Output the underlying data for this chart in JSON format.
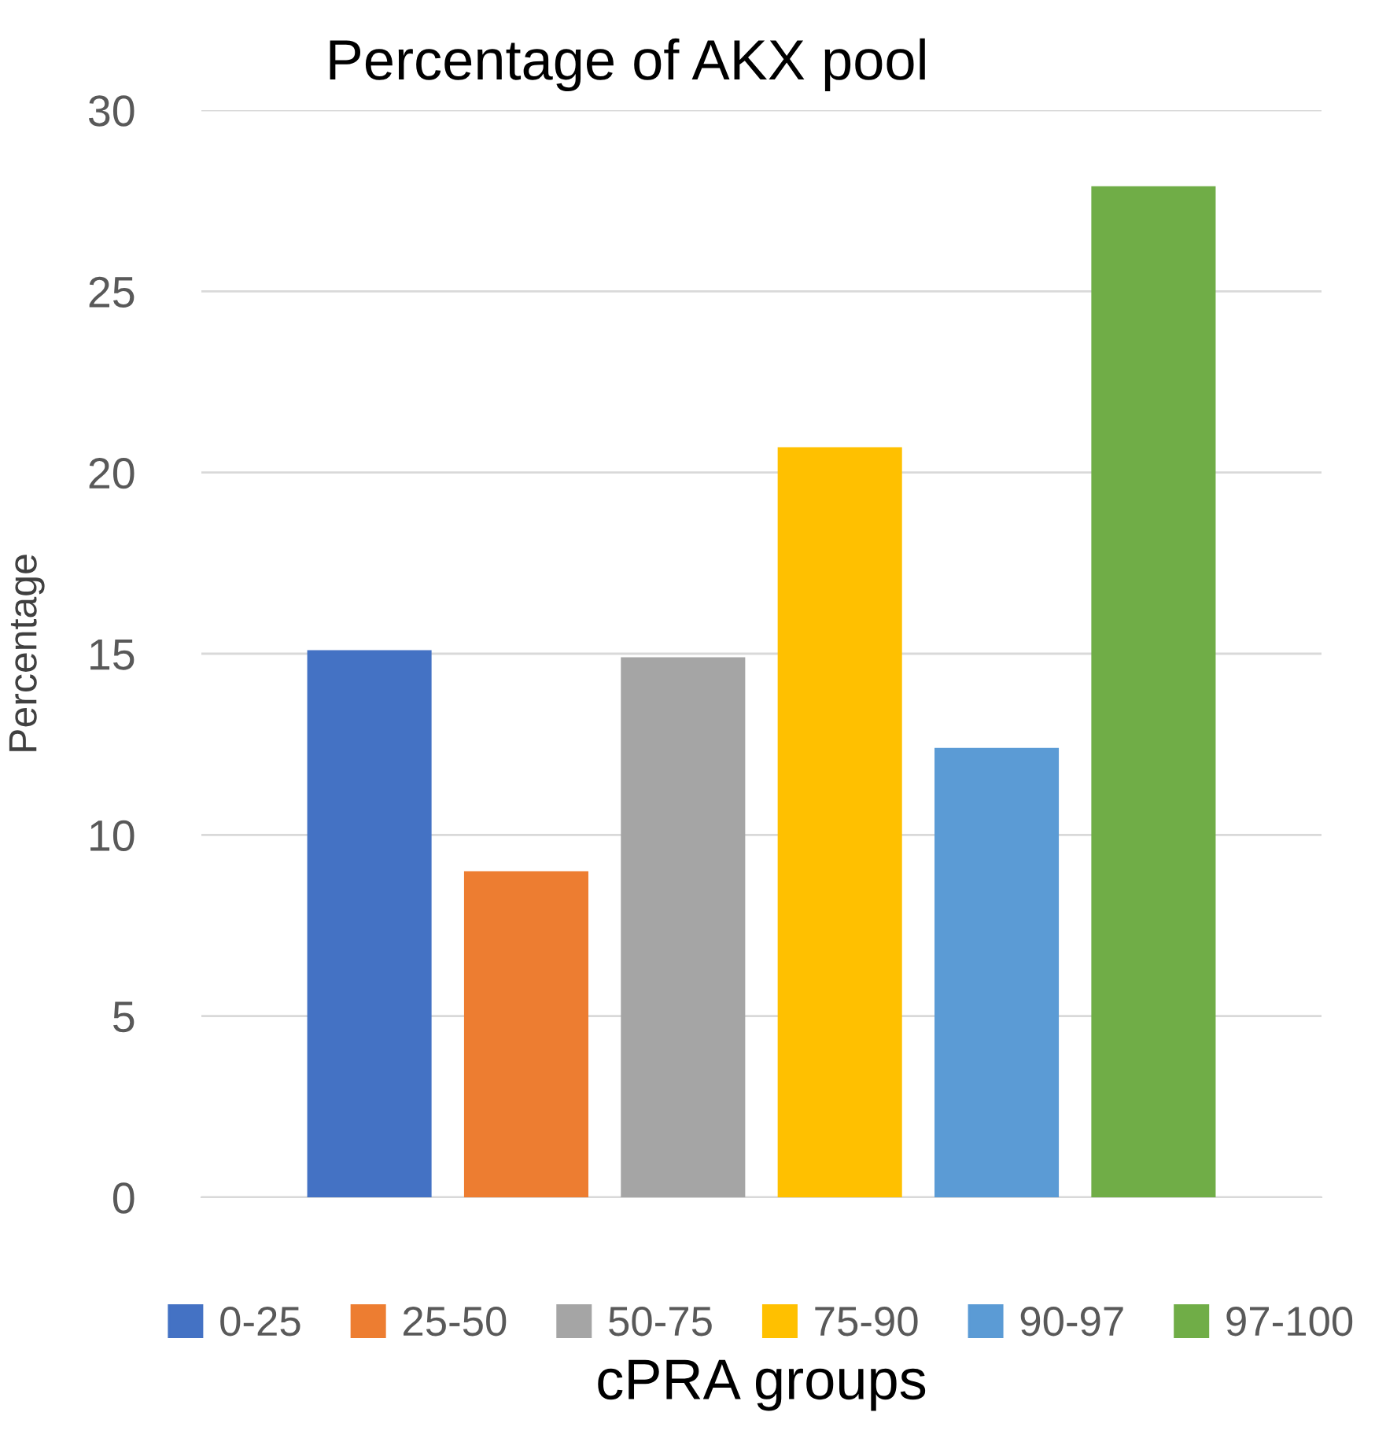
{
  "chart_data": {
    "type": "bar",
    "title": "Percentage of AKX pool",
    "xlabel": "cPRA groups",
    "ylabel": "Percentage",
    "categories": [
      null
    ],
    "series": [
      {
        "name": "0-25",
        "color": "#4472c4",
        "values": [
          15.1
        ]
      },
      {
        "name": "25-50",
        "color": "#ed7d31",
        "values": [
          9.0
        ]
      },
      {
        "name": "50-75",
        "color": "#a5a5a5",
        "values": [
          14.9
        ]
      },
      {
        "name": "75-90",
        "color": "#ffc000",
        "values": [
          20.7
        ]
      },
      {
        "name": "90-97",
        "color": "#5b9bd5",
        "values": [
          12.4
        ]
      },
      {
        "name": "97-100",
        "color": "#70ad47",
        "values": [
          27.9
        ]
      }
    ],
    "ylim": [
      0,
      30
    ],
    "yticks": [
      0,
      5,
      10,
      15,
      20,
      25,
      30
    ],
    "grid": "y",
    "legend": "bottom"
  }
}
